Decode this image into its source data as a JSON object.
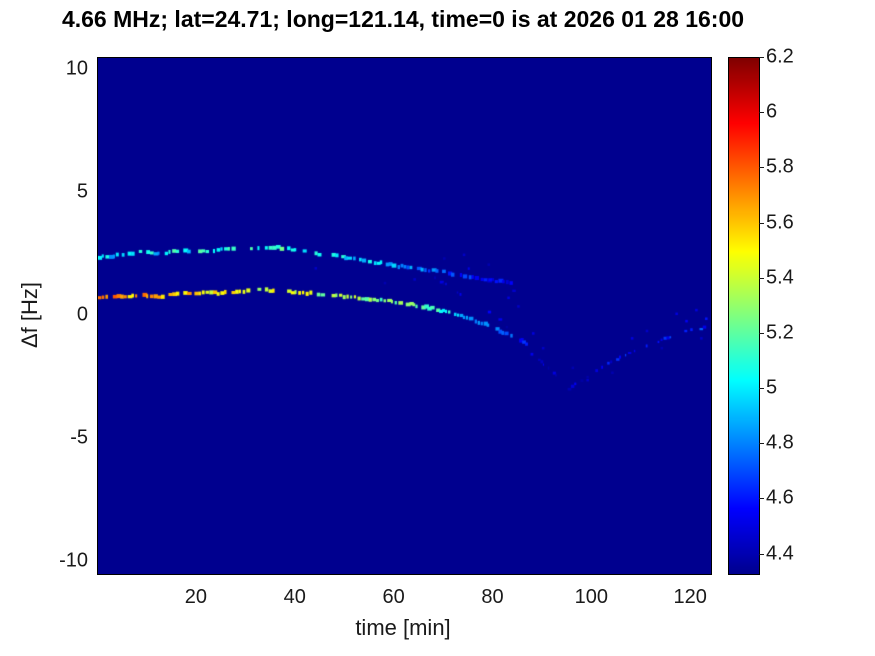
{
  "chart_data": {
    "type": "heatmap",
    "title": "4.66 MHz;  lat=24.71; long=121.14, time=0 is at 2026 01 28 16:00",
    "xlabel": "time [min]",
    "ylabel": "Δf [Hz]",
    "xlim": [
      0,
      124
    ],
    "ylim": [
      -10.5,
      10.5
    ],
    "xticks": [
      20,
      40,
      60,
      80,
      100,
      120
    ],
    "yticks": [
      -10,
      -5,
      0,
      5,
      10
    ],
    "grid": false,
    "background_value": 4.33,
    "colorbar": {
      "min": 4.33,
      "max": 6.2,
      "ticks": [
        4.4,
        4.6,
        4.8,
        5,
        5.2,
        5.4,
        5.6,
        5.8,
        6,
        6.2
      ],
      "colormap": "jet",
      "position": "right"
    },
    "series": [
      {
        "name": "upper-ridge",
        "gap": 0.25,
        "size": 3,
        "points": [
          [
            0,
            2.4,
            5.0
          ],
          [
            3,
            2.45,
            4.9
          ],
          [
            6,
            2.55,
            5.0
          ],
          [
            9,
            2.6,
            5.2
          ],
          [
            12,
            2.55,
            4.9
          ],
          [
            15,
            2.62,
            5.1
          ],
          [
            18,
            2.66,
            5.0
          ],
          [
            21,
            2.62,
            5.2
          ],
          [
            24,
            2.7,
            5.0
          ],
          [
            27,
            2.72,
            5.1
          ],
          [
            30,
            2.75,
            5.3
          ],
          [
            33,
            2.8,
            5.1
          ],
          [
            36,
            2.78,
            5.2
          ],
          [
            39,
            2.7,
            5.0
          ],
          [
            42,
            2.6,
            5.1
          ],
          [
            45,
            2.5,
            5.0
          ],
          [
            48,
            2.45,
            5.1
          ],
          [
            51,
            2.35,
            4.9
          ],
          [
            54,
            2.25,
            5.0
          ],
          [
            57,
            2.15,
            4.9
          ],
          [
            60,
            2.05,
            4.9
          ],
          [
            63,
            1.95,
            4.8
          ],
          [
            66,
            1.88,
            4.8
          ],
          [
            69,
            1.8,
            4.7
          ],
          [
            72,
            1.7,
            4.6
          ],
          [
            75,
            1.6,
            4.6
          ],
          [
            78,
            1.5,
            4.5
          ],
          [
            81,
            1.42,
            4.55
          ],
          [
            84,
            1.33,
            4.5
          ]
        ]
      },
      {
        "name": "lower-ridge",
        "gap": 0.2,
        "size": 3,
        "points": [
          [
            0,
            0.72,
            5.8
          ],
          [
            3,
            0.78,
            5.7
          ],
          [
            6,
            0.82,
            5.6
          ],
          [
            9,
            0.85,
            5.7
          ],
          [
            12,
            0.8,
            5.6
          ],
          [
            15,
            0.88,
            5.5
          ],
          [
            18,
            0.92,
            5.6
          ],
          [
            21,
            0.95,
            5.5
          ],
          [
            24,
            0.92,
            5.5
          ],
          [
            27,
            0.98,
            5.6
          ],
          [
            30,
            1.02,
            5.5
          ],
          [
            33,
            1.06,
            5.4
          ],
          [
            36,
            1.02,
            5.5
          ],
          [
            39,
            0.98,
            5.4
          ],
          [
            42,
            0.94,
            5.4
          ],
          [
            45,
            0.88,
            5.3
          ],
          [
            48,
            0.82,
            5.4
          ],
          [
            51,
            0.76,
            5.3
          ],
          [
            54,
            0.7,
            5.3
          ],
          [
            57,
            0.64,
            5.2
          ],
          [
            60,
            0.56,
            5.3
          ],
          [
            63,
            0.47,
            5.2
          ],
          [
            66,
            0.36,
            5.1
          ],
          [
            69,
            0.22,
            5.1
          ],
          [
            72,
            0.06,
            5.0
          ],
          [
            75,
            -0.12,
            4.9
          ],
          [
            78,
            -0.35,
            4.9
          ],
          [
            81,
            -0.6,
            4.8
          ],
          [
            84,
            -0.9,
            4.7
          ],
          [
            87,
            -1.2,
            4.6
          ]
        ]
      },
      {
        "name": "v-branch",
        "gap": 0.55,
        "size": 2,
        "points": [
          [
            87,
            -1.5,
            4.5
          ],
          [
            90,
            -1.95,
            4.5
          ],
          [
            93,
            -2.5,
            4.45
          ],
          [
            95,
            -2.95,
            4.5
          ],
          [
            97,
            -2.7,
            4.45
          ],
          [
            100,
            -2.3,
            4.5
          ],
          [
            103,
            -1.95,
            4.55
          ],
          [
            106,
            -1.65,
            4.6
          ],
          [
            109,
            -1.35,
            4.6
          ],
          [
            112,
            -1.1,
            4.65
          ],
          [
            115,
            -0.9,
            4.6
          ],
          [
            118,
            -0.68,
            4.65
          ],
          [
            121,
            -0.52,
            4.7
          ],
          [
            123,
            -0.45,
            4.6
          ]
        ]
      },
      {
        "name": "diagonal-branch-1",
        "gap": 0.6,
        "size": 2,
        "points": [
          [
            68,
            1.55,
            4.5
          ],
          [
            72,
            1.05,
            4.45
          ],
          [
            76,
            0.55,
            4.5
          ],
          [
            80,
            0.0,
            4.45
          ],
          [
            83,
            -0.5,
            4.5
          ],
          [
            86,
            -1.0,
            4.45
          ]
        ]
      },
      {
        "name": "diagonal-branch-2",
        "gap": 0.65,
        "size": 2,
        "points": [
          [
            73,
            2.1,
            4.45
          ],
          [
            76,
            1.8,
            4.5
          ],
          [
            79,
            1.5,
            4.45
          ],
          [
            82,
            1.2,
            4.5
          ],
          [
            85,
            0.95,
            4.45
          ]
        ]
      }
    ],
    "speckles": [
      [
        44,
        1.95,
        4.45
      ],
      [
        58,
        1.35,
        4.4
      ],
      [
        64,
        1.5,
        4.45
      ],
      [
        70,
        2.35,
        4.4
      ],
      [
        74,
        2.5,
        4.45
      ],
      [
        79,
        2.1,
        4.4
      ],
      [
        83,
        0.75,
        4.5
      ],
      [
        85,
        0.4,
        4.45
      ],
      [
        88,
        -0.7,
        4.5
      ],
      [
        90,
        -1.3,
        4.45
      ],
      [
        96,
        -2.1,
        4.4
      ],
      [
        99,
        -2.6,
        4.45
      ],
      [
        104,
        -2.3,
        4.4
      ],
      [
        108,
        -0.9,
        4.5
      ],
      [
        111,
        -0.6,
        4.45
      ],
      [
        114,
        -1.3,
        4.4
      ],
      [
        117,
        0.1,
        4.5
      ],
      [
        119,
        -0.2,
        4.55
      ],
      [
        121,
        0.25,
        4.5
      ],
      [
        122,
        -0.9,
        4.45
      ],
      [
        123,
        -0.1,
        4.6
      ]
    ]
  }
}
